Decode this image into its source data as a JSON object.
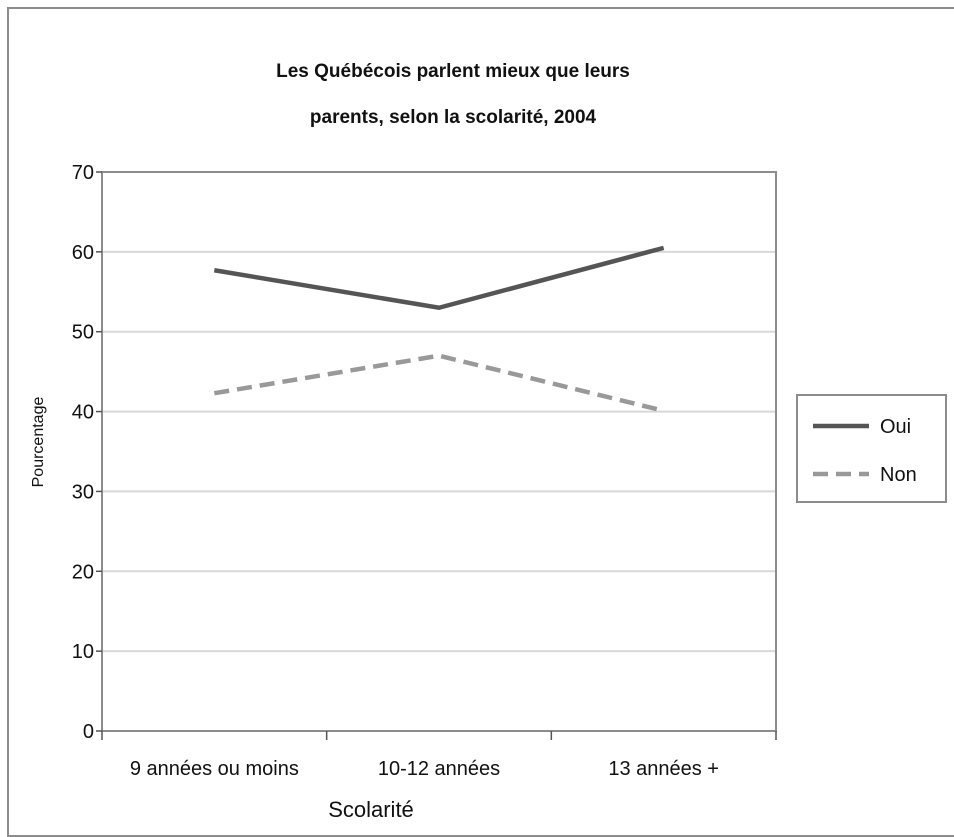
{
  "chart_data": {
    "type": "line",
    "title": "Les Québécois parlent mieux que leurs parents, selon la scolarité, 2004",
    "title_lines": [
      "Les Québécois parlent mieux que leurs",
      "parents, selon la scolarité, 2004"
    ],
    "xlabel": "Scolarité",
    "ylabel": "Pourcentage",
    "categories": [
      "9 années ou moins",
      "10-12 années",
      "13 années +"
    ],
    "ylim": [
      0,
      70
    ],
    "yticks": [
      "0",
      "10",
      "20",
      "30",
      "40",
      "50",
      "60",
      "70"
    ],
    "grid": true,
    "legend_position": "right",
    "series": [
      {
        "name": "Oui",
        "values": [
          57.7,
          53.0,
          60.5
        ],
        "color": "#555555",
        "style": "solid"
      },
      {
        "name": "Non",
        "values": [
          42.3,
          47.0,
          40.1
        ],
        "color": "#999999",
        "style": "dashed"
      }
    ]
  }
}
